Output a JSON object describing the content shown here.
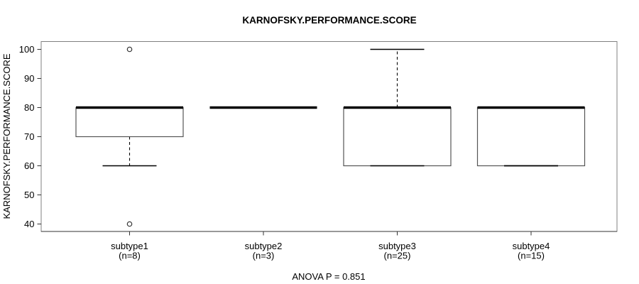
{
  "page": {
    "background": "#ffffff"
  },
  "chart_data": {
    "type": "boxplot",
    "title": "KARNOFSKY.PERFORMANCE.SCORE",
    "ylabel": "KARNOFSKY.PERFORMANCE.SCORE",
    "footer": "ANOVA P = 0.851",
    "ylim": [
      40,
      100
    ],
    "yticks": [
      40,
      50,
      60,
      70,
      80,
      90,
      100
    ],
    "grid": false,
    "legend": "none",
    "colors": {
      "frame": "#808080",
      "axis": "#333333",
      "box_border": "#555555",
      "median": "#000000",
      "whisker": "#000000",
      "outlier": "#333333",
      "text": "#000000"
    },
    "groups": [
      {
        "label": "subtype1",
        "sublabel": "(n=8)",
        "n": 8,
        "q1": 70,
        "median": 80,
        "q3": 80,
        "whisker_low": 60,
        "whisker_high": 80,
        "outliers": [
          100,
          40
        ]
      },
      {
        "label": "subtype2",
        "sublabel": "(n=3)",
        "n": 3,
        "q1": 80,
        "median": 80,
        "q3": 80,
        "whisker_low": 80,
        "whisker_high": 80,
        "outliers": []
      },
      {
        "label": "subtype3",
        "sublabel": "(n=25)",
        "n": 25,
        "q1": 60,
        "median": 80,
        "q3": 80,
        "whisker_low": 60,
        "whisker_high": 100,
        "outliers": []
      },
      {
        "label": "subtype4",
        "sublabel": "(n=15)",
        "n": 15,
        "q1": 60,
        "median": 80,
        "q3": 80,
        "whisker_low": 60,
        "whisker_high": 60,
        "outliers": []
      }
    ]
  }
}
